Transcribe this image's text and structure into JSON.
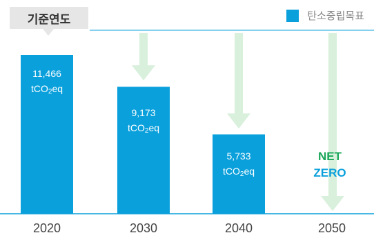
{
  "header": {
    "badge_label": "기준연도",
    "legend_label": "탄소중립목표"
  },
  "colors": {
    "bar": "#0aa0dc",
    "arrow": "#d8f0dc",
    "netzero_green": "#18a657",
    "axis": "#0aa0dc"
  },
  "chart_data": {
    "type": "bar",
    "categories": [
      "2020",
      "2030",
      "2040",
      "2050"
    ],
    "values": [
      11466,
      9173,
      5733,
      0
    ],
    "value_labels": [
      "11,466",
      "9,173",
      "5,733",
      ""
    ],
    "unit_prefix": "tCO",
    "unit_sub": "2",
    "unit_suffix": "eq",
    "netzero": [
      "NET",
      "ZERO"
    ],
    "ylim": [
      0,
      11466
    ]
  }
}
